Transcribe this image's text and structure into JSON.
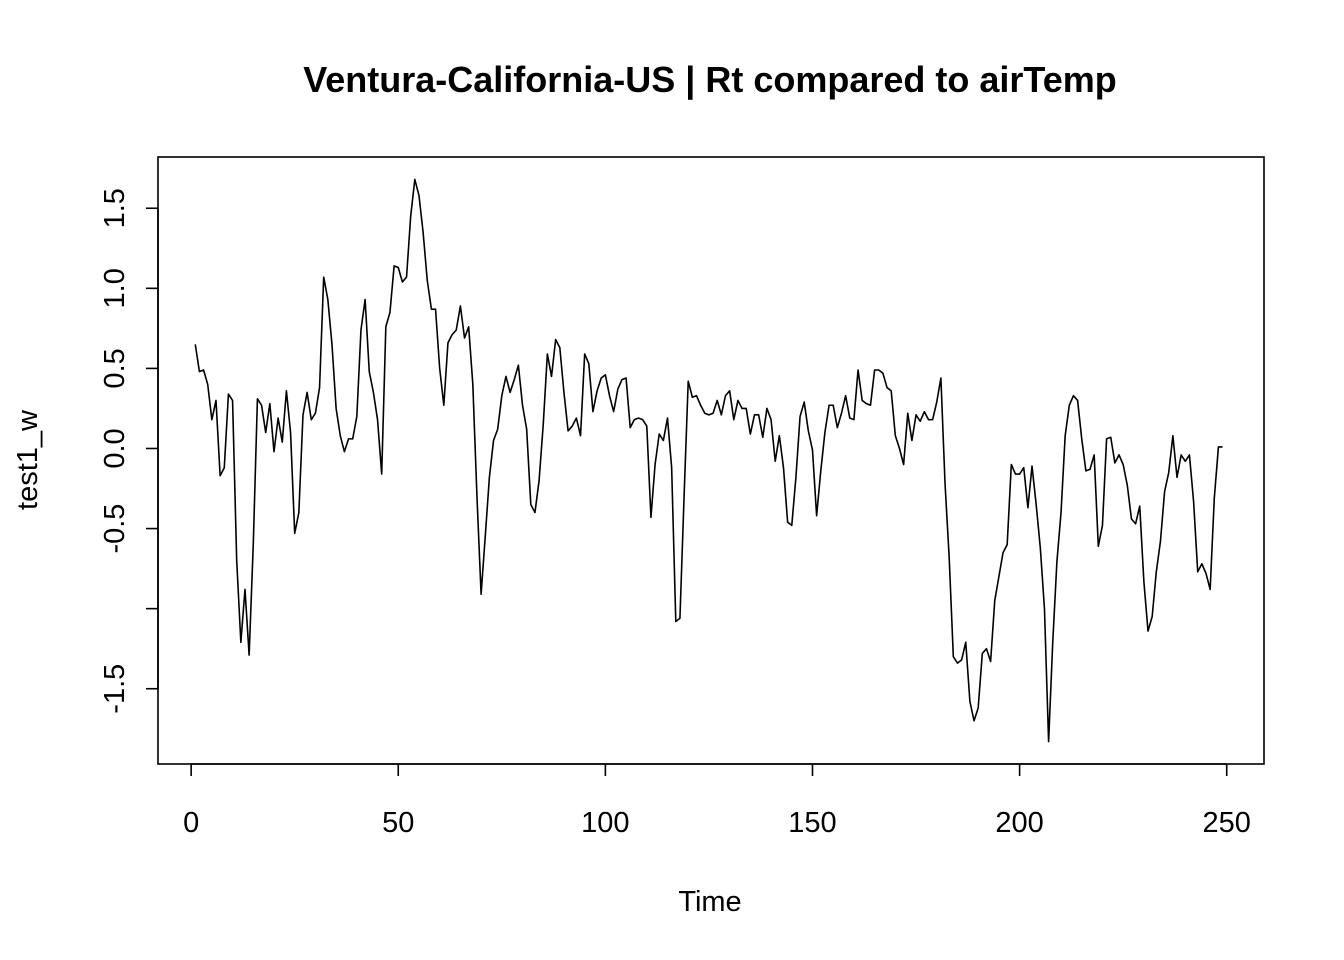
{
  "chart_data": {
    "type": "line",
    "title": "Ventura-California-US | Rt compared to airTemp",
    "xlabel": "Time",
    "ylabel": "test1_w",
    "xlim": [
      -8,
      259
    ],
    "ylim": [
      -1.97,
      1.82
    ],
    "x_ticks": [
      0,
      50,
      100,
      150,
      200,
      250
    ],
    "x_tick_labels": [
      "0",
      "50",
      "100",
      "150",
      "200",
      "250"
    ],
    "y_ticks": [
      -1.5,
      -1.0,
      -0.5,
      0.0,
      0.5,
      1.0,
      1.5
    ],
    "y_tick_labels": [
      "-1.5",
      "",
      "-0.5",
      "0.0",
      "0.5",
      "1.0",
      "1.5"
    ],
    "grid": false,
    "legend": "none",
    "line_color": "#000000",
    "series": [
      {
        "x_start": 1,
        "x_step": 1,
        "values": [
          0.65,
          0.48,
          0.49,
          0.4,
          0.18,
          0.3,
          -0.17,
          -0.12,
          0.34,
          0.3,
          -0.7,
          -1.21,
          -0.88,
          -1.29,
          -0.6,
          0.31,
          0.27,
          0.1,
          0.28,
          -0.02,
          0.19,
          0.04,
          0.36,
          0.1,
          -0.53,
          -0.4,
          0.21,
          0.35,
          0.18,
          0.22,
          0.38,
          1.07,
          0.93,
          0.65,
          0.25,
          0.08,
          -0.02,
          0.06,
          0.06,
          0.2,
          0.74,
          0.93,
          0.48,
          0.35,
          0.18,
          -0.16,
          0.76,
          0.85,
          1.14,
          1.13,
          1.04,
          1.07,
          1.45,
          1.68,
          1.58,
          1.35,
          1.05,
          0.87,
          0.87,
          0.5,
          0.27,
          0.66,
          0.71,
          0.74,
          0.89,
          0.69,
          0.76,
          0.4,
          -0.3,
          -0.91,
          -0.55,
          -0.18,
          0.05,
          0.12,
          0.33,
          0.45,
          0.35,
          0.43,
          0.52,
          0.27,
          0.12,
          -0.35,
          -0.4,
          -0.2,
          0.15,
          0.59,
          0.45,
          0.68,
          0.63,
          0.35,
          0.11,
          0.14,
          0.19,
          0.08,
          0.59,
          0.53,
          0.23,
          0.36,
          0.44,
          0.46,
          0.33,
          0.23,
          0.37,
          0.43,
          0.44,
          0.13,
          0.18,
          0.19,
          0.18,
          0.14,
          -0.43,
          -0.1,
          0.09,
          0.05,
          0.19,
          -0.12,
          -1.08,
          -1.06,
          -0.3,
          0.42,
          0.32,
          0.33,
          0.27,
          0.22,
          0.21,
          0.22,
          0.3,
          0.21,
          0.33,
          0.36,
          0.18,
          0.3,
          0.25,
          0.25,
          0.09,
          0.21,
          0.21,
          0.07,
          0.25,
          0.18,
          -0.08,
          0.08,
          -0.12,
          -0.46,
          -0.48,
          -0.18,
          0.2,
          0.29,
          0.11,
          -0.01,
          -0.42,
          -0.14,
          0.1,
          0.27,
          0.27,
          0.13,
          0.22,
          0.33,
          0.19,
          0.18,
          0.49,
          0.3,
          0.28,
          0.27,
          0.49,
          0.49,
          0.47,
          0.38,
          0.36,
          0.08,
          0.0,
          -0.1,
          0.22,
          0.05,
          0.21,
          0.17,
          0.23,
          0.18,
          0.18,
          0.29,
          0.44,
          -0.22,
          -0.68,
          -1.3,
          -1.34,
          -1.32,
          -1.21,
          -1.58,
          -1.7,
          -1.62,
          -1.28,
          -1.25,
          -1.33,
          -0.95,
          -0.8,
          -0.65,
          -0.6,
          -0.1,
          -0.16,
          -0.16,
          -0.12,
          -0.37,
          -0.11,
          -0.35,
          -0.62,
          -1.0,
          -1.83,
          -1.21,
          -0.71,
          -0.4,
          0.08,
          0.27,
          0.33,
          0.3,
          0.06,
          -0.14,
          -0.13,
          -0.04,
          -0.61,
          -0.48,
          0.06,
          0.07,
          -0.09,
          -0.04,
          -0.1,
          -0.23,
          -0.44,
          -0.47,
          -0.36,
          -0.83,
          -1.14,
          -1.05,
          -0.77,
          -0.58,
          -0.27,
          -0.15,
          0.08,
          -0.18,
          -0.04,
          -0.08,
          -0.04,
          -0.33,
          -0.77,
          -0.72,
          -0.78,
          -0.88,
          -0.31,
          0.01,
          0.01
        ]
      }
    ]
  }
}
